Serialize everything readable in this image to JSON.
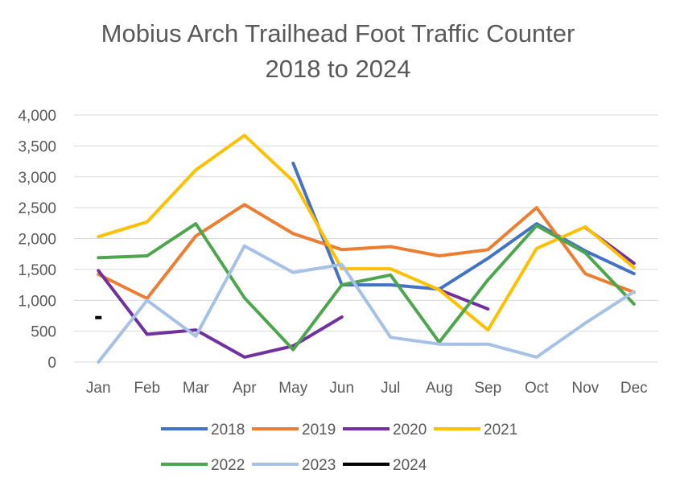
{
  "chart_data": {
    "type": "line",
    "title": "Mobius Arch Trailhead Foot Traffic Counter",
    "subtitle": "2018 to 2024",
    "xlabel": "",
    "ylabel": "",
    "ylim": [
      0,
      4000
    ],
    "y_ticks": [
      0,
      500,
      1000,
      1500,
      2000,
      2500,
      3000,
      3500,
      4000
    ],
    "y_tick_labels": [
      "0",
      "500",
      "1,000",
      "1,500",
      "2,000",
      "2,500",
      "3,000",
      "3,500",
      "4,000"
    ],
    "grid": "horizontal",
    "legend_position": "bottom",
    "categories": [
      "Jan",
      "Feb",
      "Mar",
      "Apr",
      "May",
      "Jun",
      "Jul",
      "Aug",
      "Sep",
      "Oct",
      "Nov",
      "Dec"
    ],
    "series": [
      {
        "name": "2018",
        "color": "#4472C4",
        "values": [
          null,
          null,
          null,
          null,
          3220,
          1250,
          1250,
          1180,
          1680,
          2240,
          1800,
          1430
        ]
      },
      {
        "name": "2019",
        "color": "#ED7D31",
        "values": [
          1420,
          1030,
          2040,
          2550,
          2080,
          1820,
          1870,
          1720,
          1820,
          2500,
          1430,
          1130
        ]
      },
      {
        "name": "2020",
        "color": "#7030A0",
        "values": [
          1480,
          450,
          520,
          80,
          260,
          730,
          null,
          1170,
          860,
          null,
          2180,
          1600
        ]
      },
      {
        "name": "2021",
        "color": "#FFC000",
        "values": [
          2030,
          2270,
          3110,
          3670,
          2930,
          1510,
          1510,
          1170,
          520,
          1840,
          2190,
          1530
        ]
      },
      {
        "name": "2022",
        "color": "#4DA64D",
        "values": [
          1690,
          1720,
          2240,
          1040,
          200,
          1250,
          1410,
          320,
          1330,
          2210,
          1770,
          940
        ]
      },
      {
        "name": "2023",
        "color": "#A6C1E5",
        "values": [
          0,
          1000,
          420,
          1880,
          1450,
          1580,
          400,
          290,
          290,
          80,
          630,
          1140
        ]
      },
      {
        "name": "2024",
        "color": "#000000",
        "values": [
          720,
          null,
          null,
          null,
          null,
          null,
          null,
          null,
          null,
          null,
          null,
          null
        ]
      }
    ]
  }
}
